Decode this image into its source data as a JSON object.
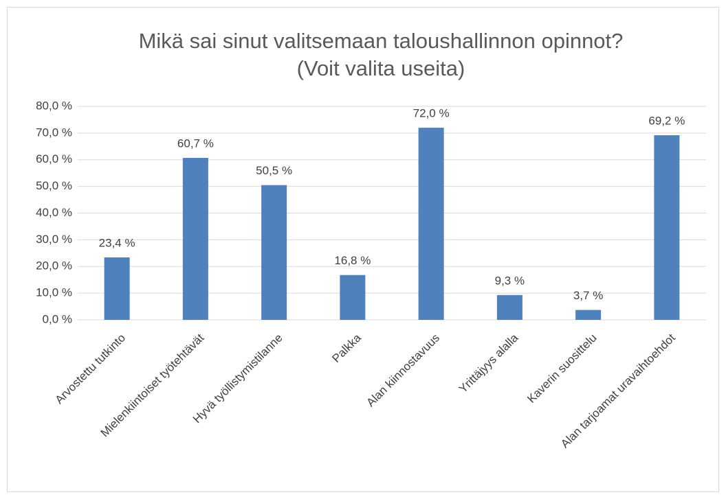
{
  "chart_data": {
    "type": "bar",
    "title": "Mikä sai sinut valitsemaan taloushallinnon opinnot?",
    "subtitle": "(Voit valita useita)",
    "categories": [
      "Arvostettu tutkinto",
      "Mielenkiintoiset työtehtävät",
      "Hyvä työllistymistilanne",
      "Palkka",
      "Alan kiinnostavuus",
      "Yrittäjyys alalla",
      "Kaverin suosittelu",
      "Alan tarjoamat uravaihtoehdot"
    ],
    "values": [
      23.4,
      60.7,
      50.5,
      16.8,
      72.0,
      9.3,
      3.7,
      69.2
    ],
    "value_labels": [
      "23,4 %",
      "60,7 %",
      "50,5 %",
      "16,8 %",
      "72,0 %",
      "9,3 %",
      "3,7 %",
      "69,2 %"
    ],
    "color": "#4f81bd",
    "ylim": [
      0,
      80
    ],
    "yticks": [
      {
        "value": 0,
        "label": "0,0 %"
      },
      {
        "value": 10,
        "label": "10,0 %"
      },
      {
        "value": 20,
        "label": "20,0 %"
      },
      {
        "value": 30,
        "label": "30,0 %"
      },
      {
        "value": 40,
        "label": "40,0 %"
      },
      {
        "value": 50,
        "label": "50,0 %"
      },
      {
        "value": 60,
        "label": "60,0 %"
      },
      {
        "value": 70,
        "label": "70,0 %"
      },
      {
        "value": 80,
        "label": "80,0 %"
      }
    ],
    "grid": true
  }
}
